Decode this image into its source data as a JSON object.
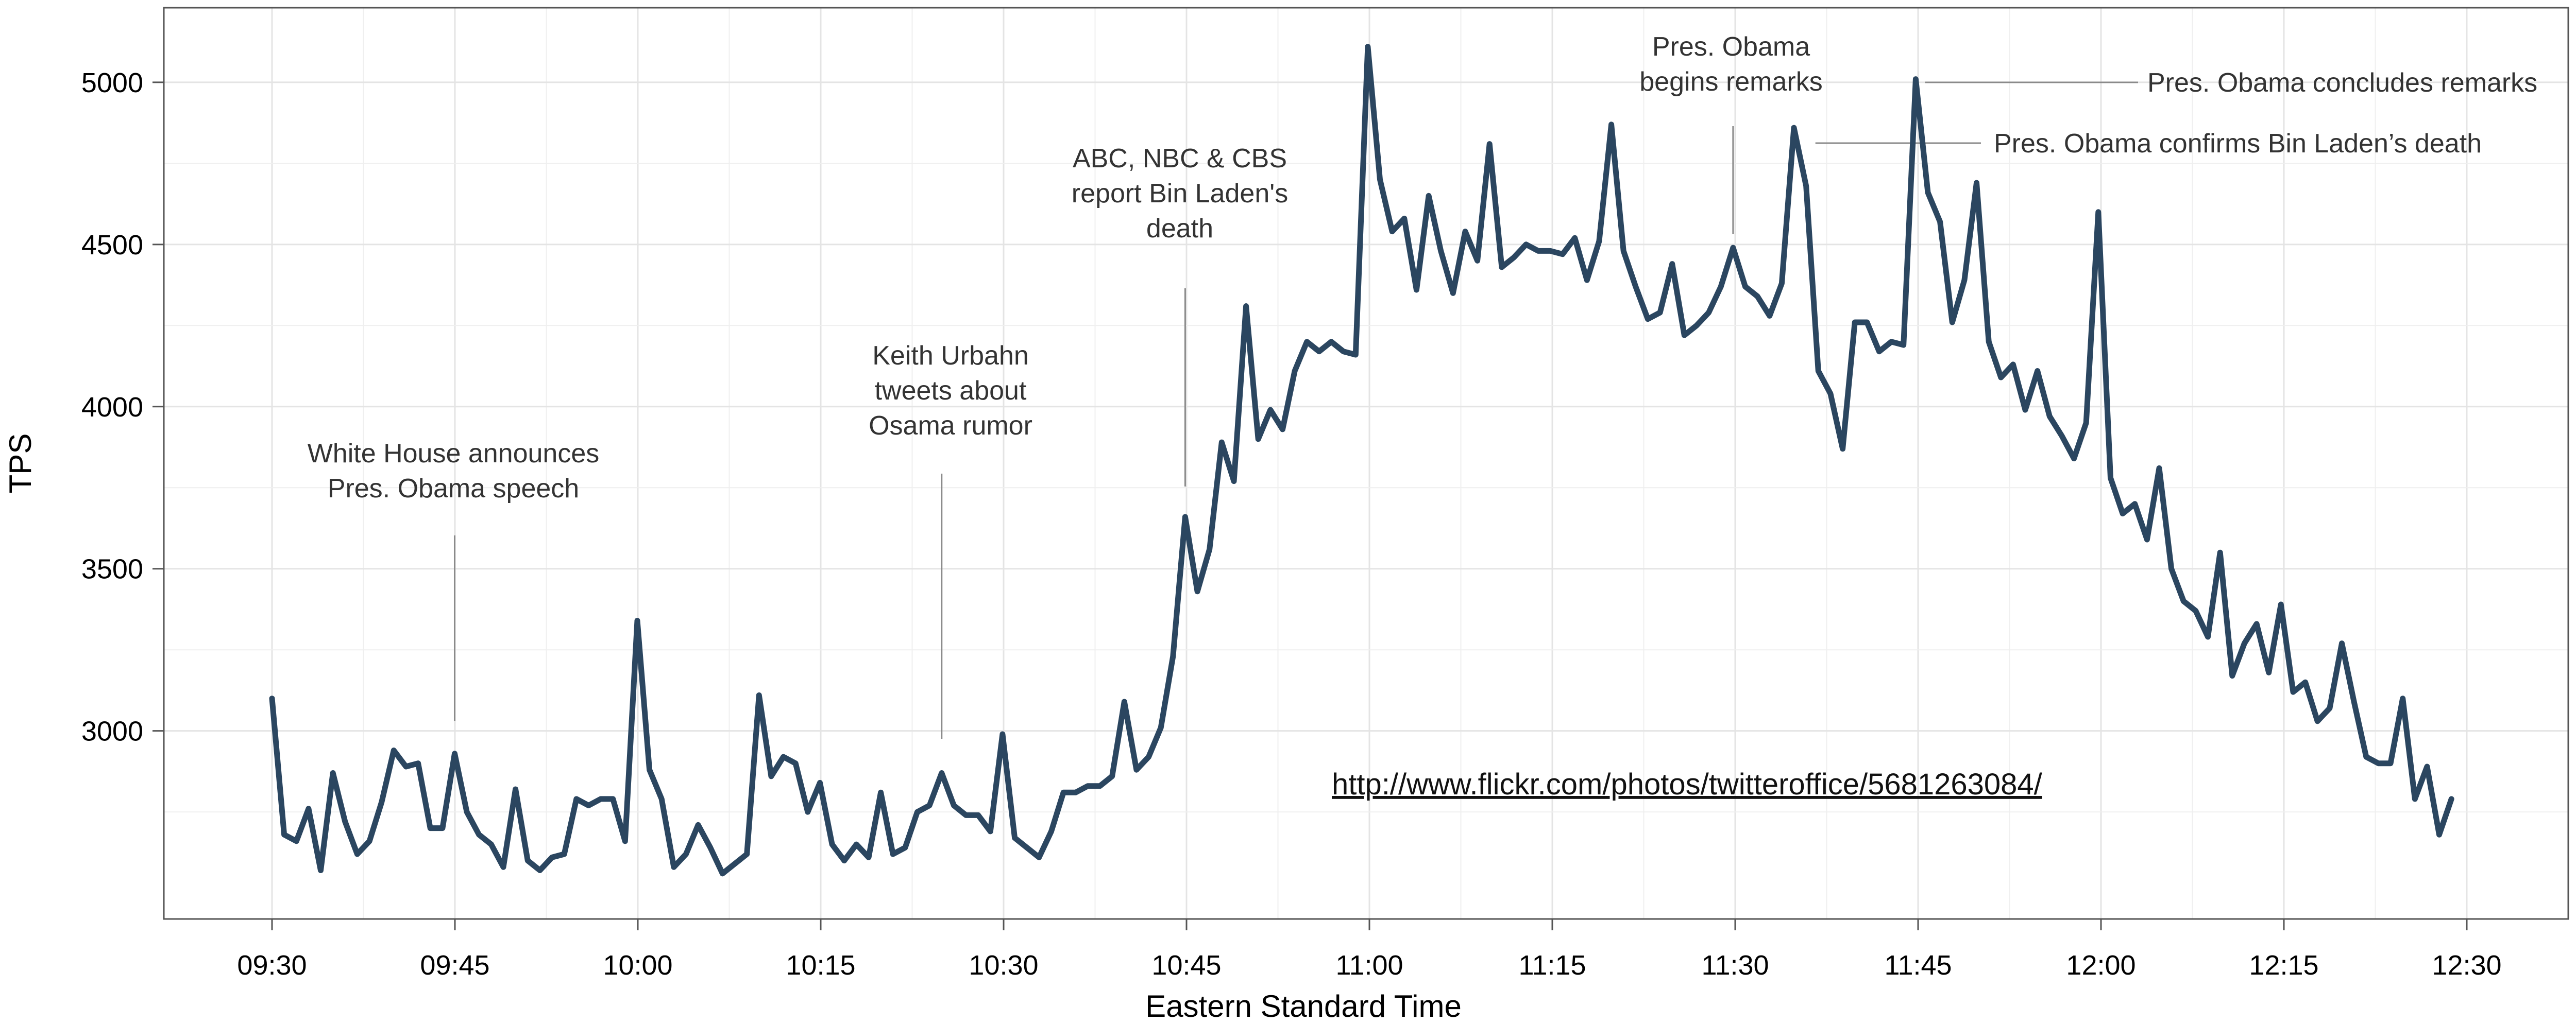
{
  "chart_data": {
    "type": "line",
    "title": "",
    "xlabel": "Eastern Standard Time",
    "ylabel": "TPS",
    "x_tick_labels": [
      "09:30",
      "09:45",
      "10:00",
      "10:15",
      "10:30",
      "10:45",
      "11:00",
      "11:15",
      "11:30",
      "11:45",
      "12:00",
      "12:15",
      "12:30"
    ],
    "y_ticks": [
      3000,
      3500,
      4000,
      4500,
      5000
    ],
    "ylim": [
      2420,
      5230
    ],
    "grid": true,
    "line_color": "#2b4660",
    "series": [
      {
        "values": [
          3100,
          2680,
          2660,
          2760,
          2570,
          2870,
          2720,
          2620,
          2660,
          2780,
          2940,
          2890,
          2900,
          2700,
          2700,
          2930,
          2750,
          2680,
          2650,
          2580,
          2820,
          2600,
          2570,
          2610,
          2620,
          2790,
          2770,
          2790,
          2790,
          2660,
          3340,
          2880,
          2790,
          2580,
          2620,
          2710,
          2640,
          2560,
          2590,
          2620,
          3110,
          2860,
          2920,
          2900,
          2750,
          2840,
          2650,
          2600,
          2650,
          2610,
          2810,
          2620,
          2640,
          2750,
          2770,
          2870,
          2770,
          2740,
          2740,
          2690,
          2990,
          2670,
          2640,
          2610,
          2690,
          2810,
          2810,
          2830,
          2830,
          2860,
          3090,
          2880,
          2920,
          3010,
          3230,
          3660,
          3430,
          3560,
          3890,
          3770,
          4310,
          3900,
          3990,
          3930,
          4110,
          4200,
          4170,
          4200,
          4170,
          4160,
          5110,
          4700,
          4540,
          4580,
          4360,
          4650,
          4480,
          4350,
          4540,
          4450,
          4810,
          4430,
          4460,
          4500,
          4480,
          4480,
          4470,
          4520,
          4390,
          4510,
          4870,
          4480,
          4370,
          4270,
          4290,
          4440,
          4220,
          4250,
          4290,
          4370,
          4490,
          4370,
          4340,
          4280,
          4380,
          4860,
          4680,
          4110,
          4040,
          3870,
          4260,
          4260,
          4170,
          4200,
          4190,
          5010,
          4660,
          4570,
          4260,
          4390,
          4690,
          4200,
          4090,
          4130,
          3990,
          4110,
          3970,
          3910,
          3840,
          3950,
          4600,
          3780,
          3670,
          3700,
          3590,
          3810,
          3500,
          3400,
          3370,
          3290,
          3550,
          3170,
          3270,
          3330,
          3180,
          3390,
          3120,
          3150,
          3030,
          3070,
          3270,
          3090,
          2920,
          2900,
          2900,
          3100,
          2790,
          2890,
          2680,
          2790
        ]
      }
    ],
    "annotations": [
      {
        "lines": [
          "White House announces",
          "Pres. Obama speech"
        ],
        "time": "09:45"
      },
      {
        "lines": [
          "Keith Urbahn",
          "tweets about",
          "Osama rumor"
        ],
        "time": "10:25"
      },
      {
        "lines": [
          "ABC, NBC & CBS",
          "report Bin Laden's",
          "death"
        ],
        "time": "10:45"
      },
      {
        "lines": [
          "Pres. Obama",
          "begins remarks"
        ],
        "time": "11:30"
      },
      {
        "lines": [
          "Pres. Obama confirms Bin Laden’s death"
        ],
        "time": "11:36"
      },
      {
        "lines": [
          "Pres. Obama concludes remarks"
        ],
        "time": "11:45"
      }
    ],
    "source_url": "http://www.flickr.com/photos/twitteroffice/5681263084/"
  }
}
